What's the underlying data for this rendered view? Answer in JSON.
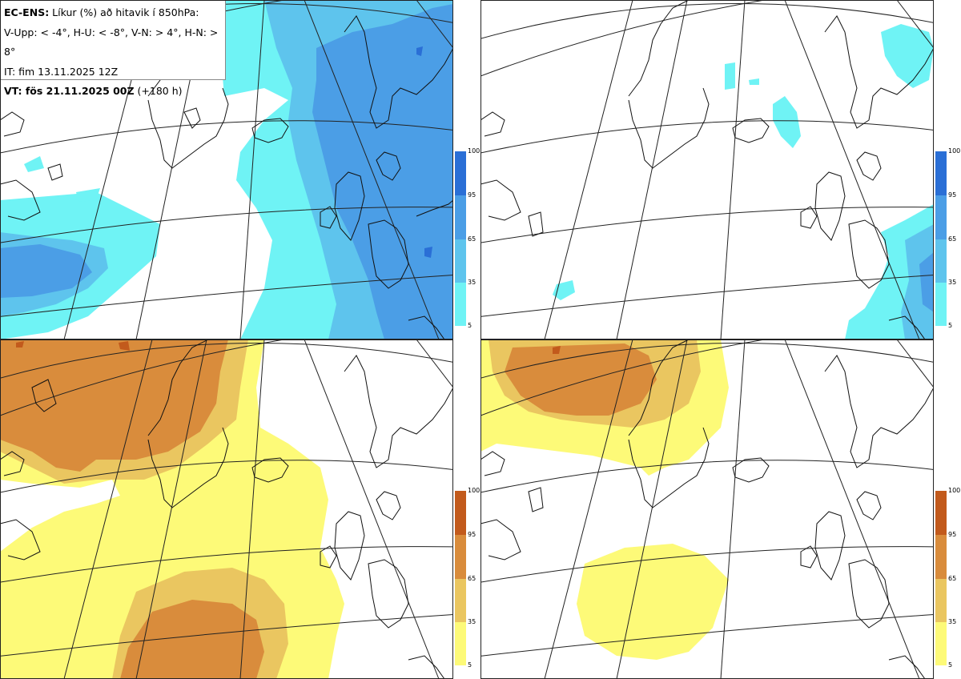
{
  "legend": {
    "line1_bold": "EC-ENS:",
    "line1_rest": " Líkur (%) að hitavik í 850hPa:",
    "line2": "V-Upp: < -4°, H-U: < -8°, V-N: > 4°, H-N: > 8°",
    "line3": "IT: fim 13.11.2025 12Z",
    "line4_bold": "VT: fös 21.11.2025 00Z",
    "line4_rest": " (+180 h)"
  },
  "colorbar_ticks": [
    "100",
    "95",
    "65",
    "35",
    "5"
  ],
  "colors": {
    "cold_5": "#6ff3f5",
    "cold_35": "#5ec4ed",
    "cold_65": "#4b9ee6",
    "cold_95": "#2a6fd6",
    "warm_5": "#fdfa78",
    "warm_35": "#eac660",
    "warm_65": "#d98c3c",
    "warm_95": "#c25a1c"
  },
  "panels": [
    {
      "id": "V-Upp",
      "scheme": "cold"
    },
    {
      "id": "H-U",
      "scheme": "cold"
    },
    {
      "id": "V-N",
      "scheme": "warm"
    },
    {
      "id": "H-N",
      "scheme": "warm"
    }
  ]
}
